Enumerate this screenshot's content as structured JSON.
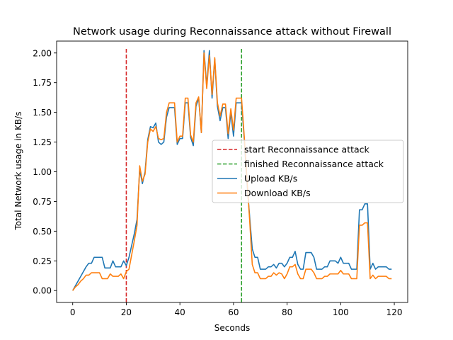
{
  "chart_data": {
    "type": "line",
    "title": "Network usage during Reconnaissance attack without Firewall",
    "xlabel": "Seconds",
    "ylabel": "Total Network usage in KB/s",
    "xlim": [
      -6,
      125
    ],
    "ylim": [
      -0.1,
      2.1
    ],
    "x_ticks": [
      0,
      20,
      40,
      60,
      80,
      100,
      120
    ],
    "y_ticks": [
      0.0,
      0.25,
      0.5,
      0.75,
      1.0,
      1.25,
      1.5,
      1.75,
      2.0
    ],
    "x_tick_labels": [
      "0",
      "20",
      "40",
      "60",
      "80",
      "100",
      "120"
    ],
    "y_tick_labels": [
      "0.00",
      "0.25",
      "0.50",
      "0.75",
      "1.00",
      "1.25",
      "1.50",
      "1.75",
      "2.00"
    ],
    "grid": false,
    "legend_position": "center-right",
    "vlines": [
      {
        "name": "start Reconnaissance attack",
        "x": 20,
        "color": "#d62728",
        "style": "dashed"
      },
      {
        "name": "finished Reconnaissance attack",
        "x": 63,
        "color": "#2ca02c",
        "style": "dashed"
      }
    ],
    "series": [
      {
        "name": "Upload KB/s",
        "color": "#1f77b4",
        "values": [
          [
            0,
            0.0
          ],
          [
            1,
            0.04
          ],
          [
            2,
            0.08
          ],
          [
            3,
            0.12
          ],
          [
            4,
            0.16
          ],
          [
            5,
            0.2
          ],
          [
            6,
            0.23
          ],
          [
            7,
            0.23
          ],
          [
            8,
            0.28
          ],
          [
            9,
            0.28
          ],
          [
            10,
            0.28
          ],
          [
            11,
            0.28
          ],
          [
            12,
            0.19
          ],
          [
            13,
            0.19
          ],
          [
            14,
            0.19
          ],
          [
            15,
            0.25
          ],
          [
            16,
            0.2
          ],
          [
            17,
            0.2
          ],
          [
            18,
            0.2
          ],
          [
            19,
            0.25
          ],
          [
            20,
            0.21
          ],
          [
            21,
            0.28
          ],
          [
            22,
            0.38
          ],
          [
            23,
            0.48
          ],
          [
            24,
            0.6
          ],
          [
            25,
            1.02
          ],
          [
            26,
            0.9
          ],
          [
            27,
            1.0
          ],
          [
            28,
            1.27
          ],
          [
            29,
            1.38
          ],
          [
            30,
            1.37
          ],
          [
            31,
            1.41
          ],
          [
            32,
            1.25
          ],
          [
            33,
            1.23
          ],
          [
            34,
            1.25
          ],
          [
            35,
            1.46
          ],
          [
            36,
            1.54
          ],
          [
            37,
            1.54
          ],
          [
            38,
            1.54
          ],
          [
            39,
            1.23
          ],
          [
            40,
            1.28
          ],
          [
            41,
            1.28
          ],
          [
            42,
            1.58
          ],
          [
            43,
            1.58
          ],
          [
            44,
            1.29
          ],
          [
            45,
            1.22
          ],
          [
            46,
            1.55
          ],
          [
            47,
            1.62
          ],
          [
            48,
            1.33
          ],
          [
            49,
            2.02
          ],
          [
            50,
            1.72
          ],
          [
            51,
            2.02
          ],
          [
            52,
            1.62
          ],
          [
            53,
            1.95
          ],
          [
            54,
            1.55
          ],
          [
            55,
            1.43
          ],
          [
            56,
            1.54
          ],
          [
            57,
            1.54
          ],
          [
            58,
            1.28
          ],
          [
            59,
            1.5
          ],
          [
            60,
            1.3
          ],
          [
            61,
            1.58
          ],
          [
            62,
            1.58
          ],
          [
            63,
            1.58
          ],
          [
            64,
            1.28
          ],
          [
            65,
            0.92
          ],
          [
            66,
            0.63
          ],
          [
            67,
            0.35
          ],
          [
            68,
            0.28
          ],
          [
            69,
            0.28
          ],
          [
            70,
            0.18
          ],
          [
            71,
            0.18
          ],
          [
            72,
            0.18
          ],
          [
            73,
            0.2
          ],
          [
            74,
            0.2
          ],
          [
            75,
            0.22
          ],
          [
            76,
            0.19
          ],
          [
            77,
            0.23
          ],
          [
            78,
            0.23
          ],
          [
            79,
            0.2
          ],
          [
            80,
            0.23
          ],
          [
            81,
            0.28
          ],
          [
            82,
            0.28
          ],
          [
            83,
            0.33
          ],
          [
            84,
            0.22
          ],
          [
            85,
            0.18
          ],
          [
            86,
            0.18
          ],
          [
            87,
            0.32
          ],
          [
            88,
            0.32
          ],
          [
            89,
            0.32
          ],
          [
            90,
            0.28
          ],
          [
            91,
            0.18
          ],
          [
            92,
            0.18
          ],
          [
            93,
            0.18
          ],
          [
            94,
            0.2
          ],
          [
            95,
            0.2
          ],
          [
            96,
            0.25
          ],
          [
            97,
            0.25
          ],
          [
            98,
            0.25
          ],
          [
            99,
            0.23
          ],
          [
            100,
            0.28
          ],
          [
            101,
            0.23
          ],
          [
            102,
            0.23
          ],
          [
            103,
            0.23
          ],
          [
            104,
            0.18
          ],
          [
            105,
            0.18
          ],
          [
            106,
            0.18
          ],
          [
            107,
            0.68
          ],
          [
            108,
            0.68
          ],
          [
            109,
            0.73
          ],
          [
            110,
            0.73
          ],
          [
            111,
            0.18
          ],
          [
            112,
            0.23
          ],
          [
            113,
            0.18
          ],
          [
            114,
            0.2
          ],
          [
            115,
            0.2
          ],
          [
            116,
            0.2
          ],
          [
            117,
            0.2
          ],
          [
            118,
            0.18
          ],
          [
            119,
            0.18
          ]
        ]
      },
      {
        "name": "Download KB/s",
        "color": "#ff7f0e",
        "values": [
          [
            0,
            0.0
          ],
          [
            1,
            0.03
          ],
          [
            2,
            0.05
          ],
          [
            3,
            0.08
          ],
          [
            4,
            0.1
          ],
          [
            5,
            0.13
          ],
          [
            6,
            0.13
          ],
          [
            7,
            0.15
          ],
          [
            8,
            0.15
          ],
          [
            9,
            0.15
          ],
          [
            10,
            0.15
          ],
          [
            11,
            0.1
          ],
          [
            12,
            0.1
          ],
          [
            13,
            0.1
          ],
          [
            14,
            0.14
          ],
          [
            15,
            0.12
          ],
          [
            16,
            0.12
          ],
          [
            17,
            0.12
          ],
          [
            18,
            0.14
          ],
          [
            19,
            0.1
          ],
          [
            20,
            0.16
          ],
          [
            21,
            0.18
          ],
          [
            22,
            0.3
          ],
          [
            23,
            0.42
          ],
          [
            24,
            0.55
          ],
          [
            25,
            1.05
          ],
          [
            26,
            0.92
          ],
          [
            27,
            0.98
          ],
          [
            28,
            1.25
          ],
          [
            29,
            1.36
          ],
          [
            30,
            1.34
          ],
          [
            31,
            1.38
          ],
          [
            32,
            1.28
          ],
          [
            33,
            1.27
          ],
          [
            34,
            1.28
          ],
          [
            35,
            1.5
          ],
          [
            36,
            1.58
          ],
          [
            37,
            1.58
          ],
          [
            38,
            1.58
          ],
          [
            39,
            1.25
          ],
          [
            40,
            1.3
          ],
          [
            41,
            1.3
          ],
          [
            42,
            1.62
          ],
          [
            43,
            1.62
          ],
          [
            44,
            1.31
          ],
          [
            45,
            1.25
          ],
          [
            46,
            1.58
          ],
          [
            47,
            1.63
          ],
          [
            48,
            1.33
          ],
          [
            49,
            2.0
          ],
          [
            50,
            1.7
          ],
          [
            51,
            1.98
          ],
          [
            52,
            1.65
          ],
          [
            53,
            1.96
          ],
          [
            54,
            1.58
          ],
          [
            55,
            1.47
          ],
          [
            56,
            1.57
          ],
          [
            57,
            1.57
          ],
          [
            58,
            1.32
          ],
          [
            59,
            1.53
          ],
          [
            60,
            1.35
          ],
          [
            61,
            1.62
          ],
          [
            62,
            1.62
          ],
          [
            63,
            1.62
          ],
          [
            64,
            1.3
          ],
          [
            65,
            0.95
          ],
          [
            66,
            0.6
          ],
          [
            67,
            0.22
          ],
          [
            68,
            0.15
          ],
          [
            69,
            0.15
          ],
          [
            70,
            0.1
          ],
          [
            71,
            0.1
          ],
          [
            72,
            0.1
          ],
          [
            73,
            0.12
          ],
          [
            74,
            0.12
          ],
          [
            75,
            0.15
          ],
          [
            76,
            0.13
          ],
          [
            77,
            0.15
          ],
          [
            78,
            0.14
          ],
          [
            79,
            0.1
          ],
          [
            80,
            0.14
          ],
          [
            81,
            0.2
          ],
          [
            82,
            0.2
          ],
          [
            83,
            0.22
          ],
          [
            84,
            0.14
          ],
          [
            85,
            0.1
          ],
          [
            86,
            0.1
          ],
          [
            87,
            0.18
          ],
          [
            88,
            0.18
          ],
          [
            89,
            0.18
          ],
          [
            90,
            0.15
          ],
          [
            91,
            0.1
          ],
          [
            92,
            0.1
          ],
          [
            93,
            0.1
          ],
          [
            94,
            0.12
          ],
          [
            95,
            0.12
          ],
          [
            96,
            0.14
          ],
          [
            97,
            0.14
          ],
          [
            98,
            0.14
          ],
          [
            99,
            0.14
          ],
          [
            100,
            0.17
          ],
          [
            101,
            0.14
          ],
          [
            102,
            0.14
          ],
          [
            103,
            0.14
          ],
          [
            104,
            0.1
          ],
          [
            105,
            0.1
          ],
          [
            106,
            0.1
          ],
          [
            107,
            0.55
          ],
          [
            108,
            0.55
          ],
          [
            109,
            0.57
          ],
          [
            110,
            0.57
          ],
          [
            111,
            0.1
          ],
          [
            112,
            0.13
          ],
          [
            113,
            0.1
          ],
          [
            114,
            0.12
          ],
          [
            115,
            0.12
          ],
          [
            116,
            0.12
          ],
          [
            117,
            0.12
          ],
          [
            118,
            0.1
          ],
          [
            119,
            0.1
          ]
        ]
      }
    ]
  }
}
